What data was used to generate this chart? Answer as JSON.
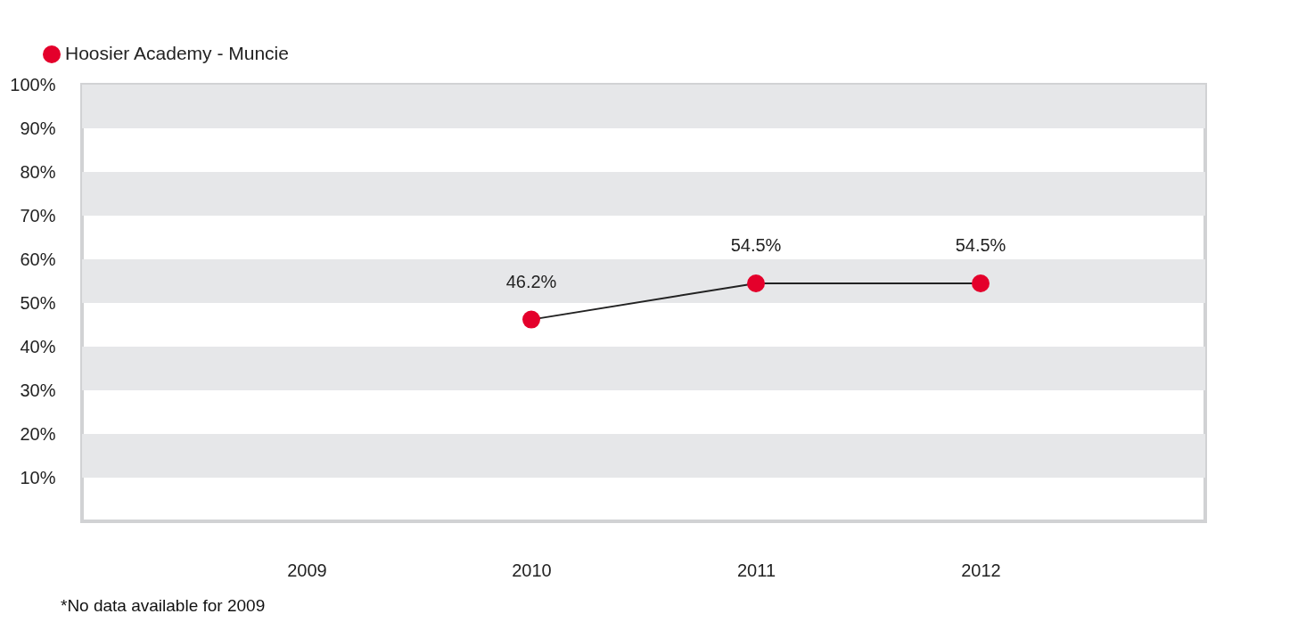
{
  "chart_data": {
    "type": "line",
    "categories": [
      "2009",
      "2010",
      "2011",
      "2012"
    ],
    "series": [
      {
        "name": "Hoosier Academy - Muncie",
        "color": "#e4002b",
        "values": [
          null,
          46.2,
          54.5,
          54.5
        ],
        "value_labels": [
          null,
          "46.2%",
          "54.5%",
          "54.5%"
        ]
      }
    ],
    "ylim": [
      0,
      100
    ],
    "yticks": [
      {
        "value": 10,
        "label": "10%"
      },
      {
        "value": 20,
        "label": "20%"
      },
      {
        "value": 30,
        "label": "30%"
      },
      {
        "value": 40,
        "label": "40%"
      },
      {
        "value": 50,
        "label": "50%"
      },
      {
        "value": 60,
        "label": "60%"
      },
      {
        "value": 70,
        "label": "70%"
      },
      {
        "value": 80,
        "label": "80%"
      },
      {
        "value": 90,
        "label": "90%"
      },
      {
        "value": 100,
        "label": "100%"
      }
    ],
    "bands": [
      {
        "axis": "y",
        "from": 10,
        "to": 20,
        "color": "#e6e7e9"
      },
      {
        "axis": "y",
        "from": 30,
        "to": 40,
        "color": "#e6e7e9"
      },
      {
        "axis": "y",
        "from": 50,
        "to": 60,
        "color": "#e6e7e9"
      },
      {
        "axis": "y",
        "from": 70,
        "to": 80,
        "color": "#e6e7e9"
      },
      {
        "axis": "y",
        "from": 90,
        "to": 100,
        "color": "#e6e7e9"
      }
    ],
    "legend": "top left",
    "marker": "circle",
    "line_style": "solid",
    "annotations": [
      "*No data available for 2009"
    ]
  }
}
